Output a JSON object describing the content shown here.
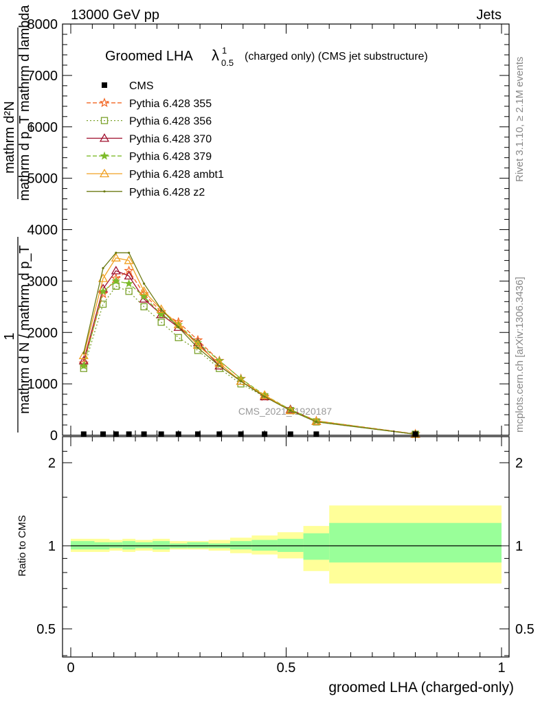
{
  "header": {
    "left": "13000 GeV pp",
    "right": "Jets"
  },
  "side": {
    "rivet": "Rivet 3.1.10, ≥ 2.1M events",
    "mcplots": "mcplots.cern.ch [arXiv:1306.3436]"
  },
  "watermark": "CMS_2021_I1920187",
  "ratio_ylabel": "Ratio to CMS",
  "colors": {
    "band_outer": "#ffff99",
    "band_inner": "#99ff99"
  },
  "chart_data": {
    "type": "line",
    "title_main": "Groomed LHA",
    "title_symbol": "λ",
    "title_sup": "1",
    "title_sub": "0.5",
    "title_rest": "(charged only) (CMS jet substructure)",
    "ylabel_num": "1",
    "ylabel_den": "mathrm d N / mathrm d p_T",
    "ylabel_den_sub": "T",
    "ylabel_right_num": "mathrm d²N",
    "ylabel_right_den": "mathrm d p_T mathrm d lambda",
    "xlabel": "groomed LHA (charged-only)",
    "xlim": [
      0,
      1
    ],
    "ylim": [
      0,
      8000
    ],
    "ratio_ylim": [
      0.35,
      2.3
    ],
    "x_ticks": [
      "0",
      "0.5",
      "1"
    ],
    "x_tick_values": [
      0,
      0.5,
      1
    ],
    "y_ticks": [
      "0",
      "1000",
      "2000",
      "3000",
      "4000",
      "5000",
      "6000",
      "7000",
      "8000"
    ],
    "y_tick_values": [
      0,
      1000,
      2000,
      3000,
      4000,
      5000,
      6000,
      7000,
      8000
    ],
    "ratio_ticks": [
      "0.5",
      "1",
      "2"
    ],
    "ratio_tick_values": [
      0.5,
      1,
      2
    ],
    "legend_position": "top-left",
    "x": [
      0.03,
      0.075,
      0.105,
      0.135,
      0.17,
      0.21,
      0.25,
      0.295,
      0.345,
      0.395,
      0.45,
      0.51,
      0.57,
      0.8
    ],
    "cms": [
      8,
      8,
      8,
      8,
      8,
      8,
      8,
      8,
      8,
      8,
      8,
      8,
      8,
      8
    ],
    "series": [
      {
        "name": "Pythia 6.428 355",
        "color": "#f26522",
        "dash": "6,3",
        "marker": "star-open",
        "values": [
          1400,
          2750,
          3050,
          3200,
          2750,
          2400,
          2200,
          1850,
          1450,
          1100,
          750,
          500,
          280,
          25
        ]
      },
      {
        "name": "Pythia 6.428 356",
        "color": "#7aa12a",
        "dash": "2,3",
        "marker": "square-open",
        "values": [
          1300,
          2550,
          2900,
          2800,
          2500,
          2200,
          1900,
          1650,
          1300,
          1000,
          750,
          480,
          260,
          20
        ]
      },
      {
        "name": "Pythia 6.428 370",
        "color": "#a0102e",
        "dash": "",
        "marker": "triangle-open",
        "values": [
          1450,
          2850,
          3200,
          3100,
          2650,
          2350,
          2100,
          1800,
          1350,
          1050,
          750,
          500,
          270,
          20
        ]
      },
      {
        "name": "Pythia 6.428 379",
        "color": "#7dbb2a",
        "dash": "6,3",
        "marker": "star-filled",
        "values": [
          1350,
          2800,
          3000,
          2950,
          2700,
          2350,
          2150,
          1800,
          1450,
          1100,
          780,
          500,
          280,
          22
        ]
      },
      {
        "name": "Pythia 6.428 ambt1",
        "color": "#f0a020",
        "dash": "",
        "marker": "triangle-open",
        "values": [
          1550,
          3050,
          3450,
          3400,
          2800,
          2450,
          2150,
          1750,
          1400,
          1050,
          780,
          480,
          270,
          20
        ]
      },
      {
        "name": "Pythia 6.428 z2",
        "color": "#6b7a12",
        "dash": "",
        "marker": "dot",
        "values": [
          1600,
          3250,
          3550,
          3550,
          2950,
          2450,
          2100,
          1700,
          1350,
          1050,
          750,
          480,
          260,
          20
        ]
      }
    ],
    "ratio_bands": [
      {
        "x0": 0.0,
        "x1": 0.055,
        "outer": [
          0.95,
          1.06
        ],
        "inner": [
          0.97,
          1.04
        ]
      },
      {
        "x0": 0.055,
        "x1": 0.09,
        "outer": [
          0.95,
          1.06
        ],
        "inner": [
          0.97,
          1.03
        ]
      },
      {
        "x0": 0.09,
        "x1": 0.12,
        "outer": [
          0.96,
          1.05
        ],
        "inner": [
          0.98,
          1.03
        ]
      },
      {
        "x0": 0.12,
        "x1": 0.15,
        "outer": [
          0.95,
          1.06
        ],
        "inner": [
          0.97,
          1.04
        ]
      },
      {
        "x0": 0.15,
        "x1": 0.19,
        "outer": [
          0.96,
          1.05
        ],
        "inner": [
          0.98,
          1.03
        ]
      },
      {
        "x0": 0.19,
        "x1": 0.23,
        "outer": [
          0.95,
          1.06
        ],
        "inner": [
          0.97,
          1.04
        ]
      },
      {
        "x0": 0.23,
        "x1": 0.27,
        "outer": [
          0.97,
          1.04
        ],
        "inner": [
          0.98,
          1.02
        ]
      },
      {
        "x0": 0.27,
        "x1": 0.32,
        "outer": [
          0.97,
          1.04
        ],
        "inner": [
          0.98,
          1.03
        ]
      },
      {
        "x0": 0.32,
        "x1": 0.37,
        "outer": [
          0.96,
          1.05
        ],
        "inner": [
          0.98,
          1.02
        ]
      },
      {
        "x0": 0.37,
        "x1": 0.42,
        "outer": [
          0.94,
          1.07
        ],
        "inner": [
          0.97,
          1.04
        ]
      },
      {
        "x0": 0.42,
        "x1": 0.48,
        "outer": [
          0.93,
          1.09
        ],
        "inner": [
          0.96,
          1.05
        ]
      },
      {
        "x0": 0.48,
        "x1": 0.54,
        "outer": [
          0.9,
          1.12
        ],
        "inner": [
          0.95,
          1.06
        ]
      },
      {
        "x0": 0.54,
        "x1": 0.6,
        "outer": [
          0.81,
          1.18
        ],
        "inner": [
          0.89,
          1.11
        ]
      },
      {
        "x0": 0.6,
        "x1": 1.0,
        "outer": [
          0.73,
          1.4
        ],
        "inner": [
          0.87,
          1.21
        ]
      }
    ]
  }
}
